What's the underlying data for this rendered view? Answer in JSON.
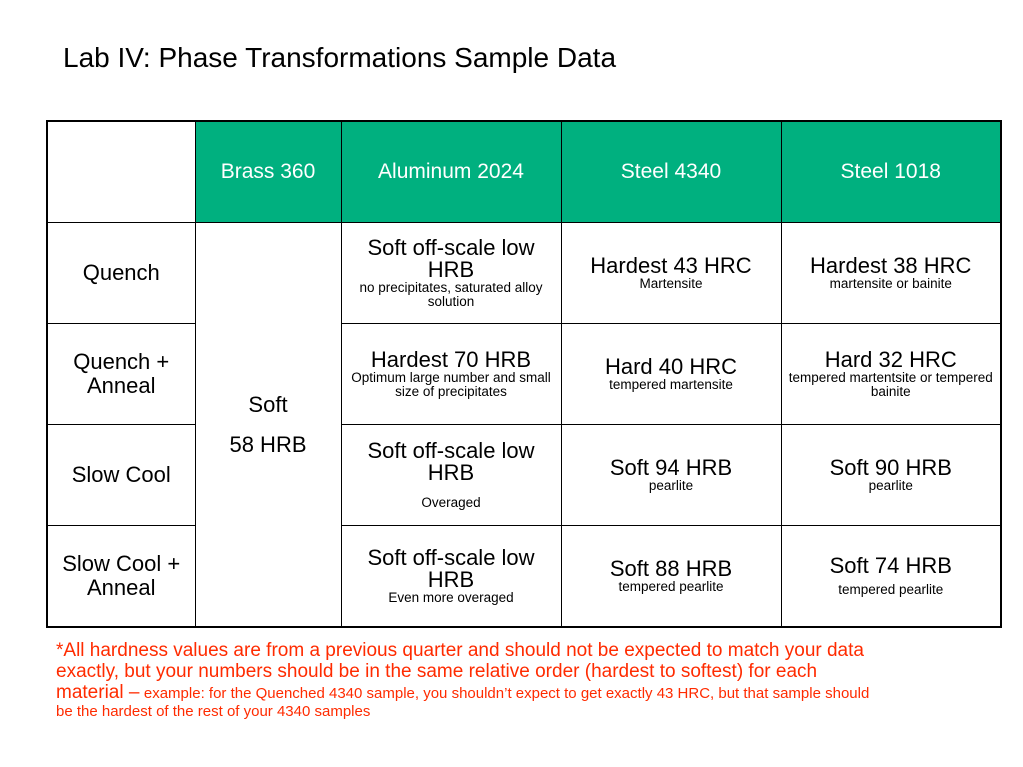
{
  "title": "Lab IV: Phase Transformations Sample Data",
  "table": {
    "headers": [
      "",
      "Brass 360",
      "Aluminum 2024",
      "Steel 4340",
      "Steel 1018"
    ],
    "brass": {
      "line1": "Soft",
      "line2": "58 HRB"
    },
    "rows": [
      {
        "label": "Quench",
        "aluminum": {
          "main": "Soft off-scale low HRB",
          "sub": "no precipitates, saturated alloy solution"
        },
        "steel4340": {
          "main": "Hardest 43 HRC",
          "sub": "Martensite"
        },
        "steel1018": {
          "main": "Hardest 38 HRC",
          "sub": "martensite or bainite"
        }
      },
      {
        "label": "Quench + Anneal",
        "aluminum": {
          "main": "Hardest 70 HRB",
          "sub": "Optimum large number and small size of precipitates"
        },
        "steel4340": {
          "main": "Hard 40 HRC",
          "sub": "tempered martensite"
        },
        "steel1018": {
          "main": "Hard 32 HRC",
          "sub": "tempered martentsite or tempered bainite"
        }
      },
      {
        "label": "Slow Cool",
        "aluminum": {
          "main": "Soft off-scale low HRB",
          "sub": "Overaged"
        },
        "steel4340": {
          "main": "Soft 94 HRB",
          "sub": "pearlite"
        },
        "steel1018": {
          "main": "Soft 90 HRB",
          "sub": "pearlite"
        }
      },
      {
        "label": "Slow Cool + Anneal",
        "aluminum": {
          "main": "Soft off-scale low HRB",
          "sub": "Even more overaged"
        },
        "steel4340": {
          "main": "Soft 88 HRB",
          "sub": "tempered pearlite"
        },
        "steel1018": {
          "main": "Soft 74 HRB",
          "sub": "tempered pearlite"
        }
      }
    ]
  },
  "note": {
    "lead": "*All hardness values are from a previous quarter and should not be expected to match your data exactly, but your numbers should be in the same relative order (hardest to softest) for each material –",
    "rest": "example: for the Quenched 4340 sample, you shouldn’t expect to get exactly 43 HRC, but that sample should be the hardest of the rest of your 4340 samples"
  },
  "colors": {
    "header_bg": "#00b07f",
    "header_text": "#ffffff",
    "note_text": "#ff2b00"
  }
}
